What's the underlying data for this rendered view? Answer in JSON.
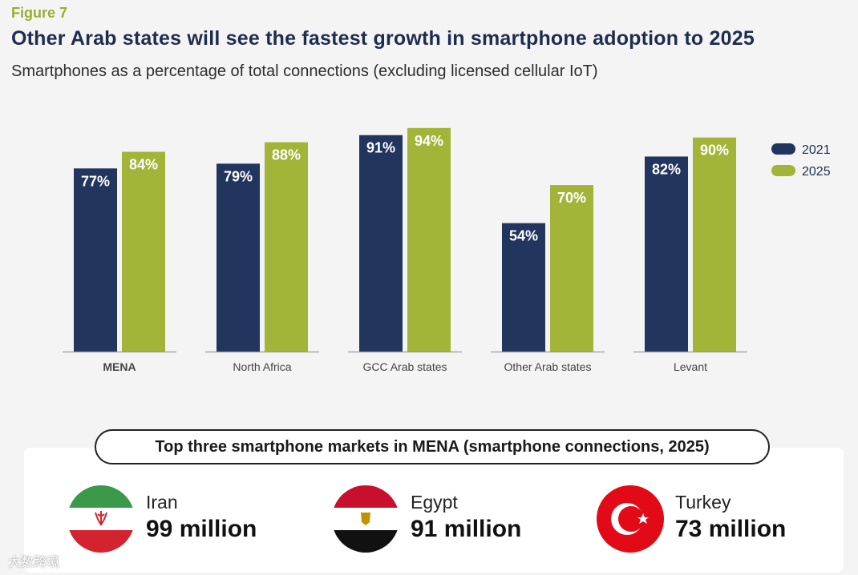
{
  "figure_label": "Figure 7",
  "chart_data": {
    "type": "bar",
    "title": "Other Arab states will see the fastest growth in smartphone adoption to 2025",
    "subtitle": "Smartphones as a percentage of total connections (excluding licensed cellular IoT)",
    "categories": [
      "MENA",
      "North Africa",
      "GCC Arab states",
      "Other Arab states",
      "Levant"
    ],
    "series": [
      {
        "name": "2021",
        "color": "#22355e",
        "values": [
          77,
          79,
          91,
          54,
          82
        ],
        "labels": [
          "77%",
          "79%",
          "91%",
          "54%",
          "82%"
        ]
      },
      {
        "name": "2025",
        "color": "#a3b538",
        "values": [
          84,
          88,
          94,
          70,
          90
        ],
        "labels": [
          "84%",
          "88%",
          "94%",
          "70%",
          "90%"
        ]
      }
    ],
    "ylim": [
      0,
      100
    ],
    "xlabel": "",
    "ylabel": "",
    "grid": false,
    "legend": "right"
  },
  "markets": {
    "heading": "Top three smartphone markets in MENA (smartphone connections, 2025)",
    "items": [
      {
        "country": "Iran",
        "amount": "99 million"
      },
      {
        "country": "Egypt",
        "amount": "91 million"
      },
      {
        "country": "Turkey",
        "amount": "73 million"
      }
    ]
  },
  "watermark": "大数跨境"
}
